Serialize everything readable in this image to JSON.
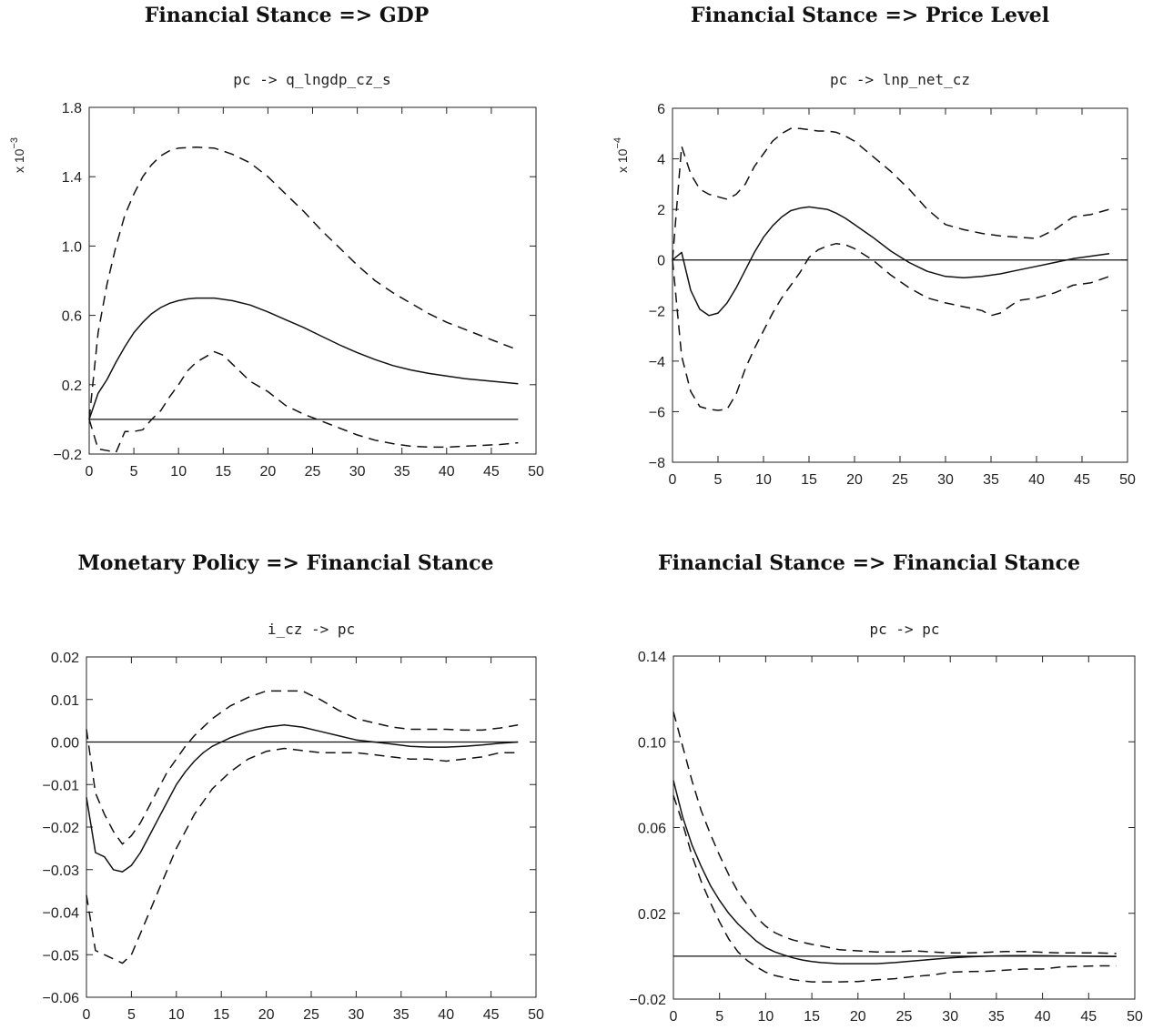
{
  "chart_data": [
    {
      "type": "line",
      "heading": "Financial Stance => GDP",
      "subtitle": "pc -> q_lngdp_cz_s",
      "multiplier_label": "x 10",
      "multiplier_exp": "−3",
      "xlim": [
        0,
        50
      ],
      "ylim": [
        -0.2,
        1.8
      ],
      "x_ticks": [
        0,
        5,
        10,
        15,
        20,
        25,
        30,
        35,
        40,
        45,
        50
      ],
      "x_tick_labels": [
        "0",
        "5",
        "10",
        "15",
        "20",
        "25",
        "30",
        "35",
        "40",
        "45",
        "50"
      ],
      "y_ticks": [
        -0.2,
        0.2,
        0.6,
        1.0,
        1.4,
        1.8
      ],
      "y_tick_labels": [
        "−0.2",
        "0.2",
        "0.6",
        "1.0",
        "1.4",
        "1.8"
      ],
      "zero_line": {
        "y": 0,
        "x": [
          0,
          48
        ]
      },
      "series": [
        {
          "style": "solid",
          "x": [
            0,
            1,
            2,
            3,
            4,
            5,
            6,
            7,
            8,
            9,
            10,
            11,
            12,
            13,
            14,
            16,
            18,
            20,
            22,
            24,
            26,
            28,
            30,
            32,
            34,
            36,
            38,
            40,
            42,
            44,
            46,
            48
          ],
          "y": [
            0,
            0.15,
            0.23,
            0.33,
            0.42,
            0.5,
            0.56,
            0.61,
            0.645,
            0.67,
            0.685,
            0.695,
            0.7,
            0.7,
            0.7,
            0.685,
            0.66,
            0.62,
            0.575,
            0.53,
            0.48,
            0.43,
            0.385,
            0.345,
            0.31,
            0.285,
            0.265,
            0.25,
            0.235,
            0.225,
            0.215,
            0.205
          ]
        },
        {
          "style": "dashed",
          "x": [
            0,
            1,
            2,
            3,
            4,
            5,
            6,
            7,
            8,
            9,
            10,
            12,
            14,
            16,
            18,
            20,
            22,
            24,
            26,
            28,
            30,
            32,
            34,
            36,
            38,
            40,
            42,
            44,
            46,
            48
          ],
          "y": [
            0,
            0.5,
            0.78,
            1.0,
            1.18,
            1.3,
            1.4,
            1.47,
            1.52,
            1.55,
            1.565,
            1.57,
            1.565,
            1.53,
            1.48,
            1.4,
            1.3,
            1.2,
            1.09,
            0.99,
            0.89,
            0.8,
            0.73,
            0.67,
            0.61,
            0.56,
            0.52,
            0.48,
            0.44,
            0.4
          ]
        },
        {
          "style": "dashed",
          "x": [
            0,
            1,
            2,
            3,
            4,
            5,
            6,
            7,
            8,
            9,
            10,
            11,
            12,
            13,
            14,
            15,
            16,
            18,
            20,
            22,
            24,
            26,
            28,
            30,
            32,
            34,
            36,
            38,
            40,
            42,
            44,
            46,
            48
          ],
          "y": [
            0,
            -0.17,
            -0.18,
            -0.19,
            -0.07,
            -0.07,
            -0.06,
            0,
            0.05,
            0.13,
            0.2,
            0.28,
            0.33,
            0.36,
            0.39,
            0.37,
            0.32,
            0.22,
            0.16,
            0.08,
            0.03,
            -0.01,
            -0.05,
            -0.09,
            -0.12,
            -0.14,
            -0.155,
            -0.16,
            -0.16,
            -0.155,
            -0.15,
            -0.145,
            -0.135
          ]
        }
      ]
    },
    {
      "type": "line",
      "heading": "Financial Stance => Price Level",
      "subtitle": "pc -> lnp_net_cz",
      "multiplier_label": "x 10",
      "multiplier_exp": "−4",
      "xlim": [
        0,
        50
      ],
      "ylim": [
        -8,
        6
      ],
      "x_ticks": [
        0,
        5,
        10,
        15,
        20,
        25,
        30,
        35,
        40,
        45,
        50
      ],
      "x_tick_labels": [
        "0",
        "5",
        "10",
        "15",
        "20",
        "25",
        "30",
        "35",
        "40",
        "45",
        "50"
      ],
      "y_ticks": [
        -8,
        -6,
        -4,
        -2,
        0,
        2,
        4,
        6
      ],
      "y_tick_labels": [
        "−8",
        "−6",
        "−4",
        "−2",
        "0",
        "2",
        "4",
        "6"
      ],
      "zero_line": {
        "y": 0,
        "x": [
          0,
          50
        ]
      },
      "series": [
        {
          "style": "solid",
          "x": [
            0,
            1,
            2,
            3,
            4,
            5,
            6,
            7,
            8,
            9,
            10,
            11,
            12,
            13,
            14,
            15,
            16,
            17,
            18,
            19,
            20,
            22,
            24,
            26,
            28,
            30,
            32,
            34,
            36,
            38,
            40,
            42,
            44,
            46,
            48
          ],
          "y": [
            0,
            0.3,
            -1.2,
            -1.95,
            -2.2,
            -2.1,
            -1.7,
            -1.1,
            -0.4,
            0.3,
            0.9,
            1.35,
            1.7,
            1.95,
            2.05,
            2.1,
            2.05,
            2.0,
            1.85,
            1.65,
            1.4,
            0.9,
            0.35,
            -0.1,
            -0.45,
            -0.65,
            -0.7,
            -0.65,
            -0.55,
            -0.4,
            -0.25,
            -0.1,
            0.05,
            0.15,
            0.25
          ]
        },
        {
          "style": "dashed",
          "x": [
            0,
            1,
            2,
            3,
            4,
            5,
            6,
            7,
            8,
            9,
            10,
            11,
            12,
            13,
            14,
            15,
            16,
            17,
            18,
            19,
            20,
            22,
            24,
            26,
            28,
            30,
            32,
            34,
            36,
            38,
            40,
            42,
            44,
            46,
            48
          ],
          "y": [
            0,
            4.5,
            3.4,
            2.8,
            2.6,
            2.5,
            2.4,
            2.6,
            3.0,
            3.7,
            4.2,
            4.7,
            5.0,
            5.2,
            5.2,
            5.15,
            5.1,
            5.1,
            5.05,
            4.9,
            4.7,
            4.1,
            3.5,
            2.8,
            2.0,
            1.4,
            1.2,
            1.05,
            0.95,
            0.9,
            0.85,
            1.2,
            1.7,
            1.8,
            2.0
          ]
        },
        {
          "style": "dashed",
          "x": [
            0,
            1,
            2,
            3,
            4,
            5,
            6,
            7,
            8,
            9,
            10,
            11,
            12,
            13,
            14,
            15,
            16,
            17,
            18,
            19,
            20,
            22,
            24,
            26,
            28,
            30,
            32,
            34,
            35,
            36,
            38,
            40,
            42,
            44,
            46,
            48
          ],
          "y": [
            0,
            -3.8,
            -5.2,
            -5.8,
            -5.9,
            -5.95,
            -5.9,
            -5.3,
            -4.3,
            -3.5,
            -2.8,
            -2.1,
            -1.5,
            -1.0,
            -0.5,
            0.1,
            0.4,
            0.55,
            0.65,
            0.6,
            0.45,
            0,
            -0.6,
            -1.1,
            -1.5,
            -1.7,
            -1.85,
            -2.0,
            -2.2,
            -2.1,
            -1.6,
            -1.5,
            -1.3,
            -1.0,
            -0.9,
            -0.65
          ]
        }
      ]
    },
    {
      "type": "line",
      "heading": "Monetary Policy => Financial Stance",
      "subtitle": "i_cz -> pc",
      "xlim": [
        0,
        50
      ],
      "ylim": [
        -0.06,
        0.02
      ],
      "x_ticks": [
        0,
        5,
        10,
        15,
        20,
        25,
        30,
        35,
        40,
        45,
        50
      ],
      "x_tick_labels": [
        "0",
        "5",
        "10",
        "15",
        "20",
        "25",
        "30",
        "35",
        "40",
        "45",
        "50"
      ],
      "y_ticks": [
        -0.06,
        -0.05,
        -0.04,
        -0.03,
        -0.02,
        -0.01,
        0.0,
        0.01,
        0.02
      ],
      "y_tick_labels": [
        "−0.06",
        "−0.05",
        "−0.04",
        "−0.03",
        "−0.02",
        "−0.01",
        "0.00",
        "0.01",
        "0.02"
      ],
      "zero_line": {
        "y": 0,
        "x": [
          0,
          48
        ]
      },
      "series": [
        {
          "style": "solid",
          "x": [
            0,
            1,
            2,
            3,
            4,
            5,
            6,
            7,
            8,
            9,
            10,
            11,
            12,
            13,
            14,
            15,
            16,
            18,
            20,
            22,
            24,
            26,
            28,
            30,
            32,
            34,
            36,
            38,
            40,
            42,
            44,
            46,
            48
          ],
          "y": [
            -0.013,
            -0.026,
            -0.027,
            -0.03,
            -0.0305,
            -0.029,
            -0.026,
            -0.022,
            -0.018,
            -0.014,
            -0.01,
            -0.007,
            -0.0045,
            -0.0025,
            -0.001,
            0,
            0.001,
            0.0025,
            0.0035,
            0.004,
            0.0035,
            0.0025,
            0.0015,
            0.0005,
            0,
            -0.0005,
            -0.001,
            -0.0012,
            -0.0012,
            -0.001,
            -0.0007,
            -0.0003,
            0
          ]
        },
        {
          "style": "dashed",
          "x": [
            0,
            1,
            2,
            3,
            4,
            5,
            6,
            7,
            8,
            9,
            10,
            11,
            12,
            13,
            14,
            15,
            16,
            18,
            20,
            22,
            24,
            26,
            28,
            30,
            32,
            34,
            36,
            38,
            40,
            42,
            44,
            46,
            48
          ],
          "y": [
            0.003,
            -0.012,
            -0.017,
            -0.021,
            -0.024,
            -0.022,
            -0.019,
            -0.015,
            -0.011,
            -0.007,
            -0.004,
            -0.001,
            0.0015,
            0.0035,
            0.0055,
            0.007,
            0.0085,
            0.0105,
            0.012,
            0.012,
            0.012,
            0.01,
            0.0075,
            0.0055,
            0.0045,
            0.0035,
            0.003,
            0.003,
            0.003,
            0.0028,
            0.0028,
            0.0033,
            0.004
          ]
        },
        {
          "style": "dashed",
          "x": [
            0,
            1,
            2,
            3,
            4,
            5,
            6,
            7,
            8,
            9,
            10,
            11,
            12,
            13,
            14,
            15,
            16,
            18,
            20,
            22,
            24,
            26,
            28,
            30,
            32,
            34,
            36,
            38,
            40,
            42,
            44,
            46,
            48
          ],
          "y": [
            -0.036,
            -0.049,
            -0.05,
            -0.051,
            -0.052,
            -0.05,
            -0.045,
            -0.04,
            -0.035,
            -0.03,
            -0.025,
            -0.021,
            -0.017,
            -0.014,
            -0.011,
            -0.009,
            -0.007,
            -0.004,
            -0.0022,
            -0.0015,
            -0.002,
            -0.0025,
            -0.0025,
            -0.0025,
            -0.003,
            -0.0035,
            -0.004,
            -0.004,
            -0.0045,
            -0.004,
            -0.0035,
            -0.0025,
            -0.0025
          ]
        }
      ]
    },
    {
      "type": "line",
      "heading": "Financial Stance => Financial Stance",
      "subtitle": "pc -> pc",
      "xlim": [
        0,
        50
      ],
      "ylim": [
        -0.02,
        0.14
      ],
      "x_ticks": [
        0,
        5,
        10,
        15,
        20,
        25,
        30,
        35,
        40,
        45,
        50
      ],
      "x_tick_labels": [
        "0",
        "5",
        "10",
        "15",
        "20",
        "25",
        "30",
        "35",
        "40",
        "45",
        "50"
      ],
      "y_ticks": [
        -0.02,
        0.02,
        0.06,
        0.1,
        0.14
      ],
      "y_tick_labels": [
        "−0.02",
        "0.02",
        "0.06",
        "0.10",
        "0.14"
      ],
      "zero_line": {
        "y": 0,
        "x": [
          0,
          48
        ]
      },
      "series": [
        {
          "style": "solid",
          "x": [
            0,
            1,
            2,
            3,
            4,
            5,
            6,
            7,
            8,
            9,
            10,
            11,
            12,
            13,
            14,
            15,
            16,
            18,
            20,
            22,
            24,
            26,
            28,
            30,
            32,
            34,
            36,
            38,
            40,
            42,
            44,
            46,
            48
          ],
          "y": [
            0.082,
            0.065,
            0.052,
            0.042,
            0.033,
            0.026,
            0.02,
            0.015,
            0.011,
            0.007,
            0.004,
            0.002,
            0.0005,
            -0.0008,
            -0.0018,
            -0.0025,
            -0.003,
            -0.0035,
            -0.0035,
            -0.0035,
            -0.003,
            -0.0022,
            -0.0015,
            -0.0008,
            -0.0003,
            0,
            0.0002,
            0.0003,
            0.0002,
            0.0001,
            0,
            -0.0001,
            -0.0002
          ]
        },
        {
          "style": "dashed",
          "x": [
            0,
            1,
            2,
            3,
            4,
            5,
            6,
            7,
            8,
            9,
            10,
            11,
            12,
            13,
            14,
            15,
            16,
            18,
            20,
            22,
            24,
            26,
            28,
            30,
            32,
            34,
            36,
            38,
            40,
            42,
            44,
            46,
            48
          ],
          "y": [
            0.114,
            0.098,
            0.082,
            0.068,
            0.057,
            0.047,
            0.038,
            0.03,
            0.024,
            0.018,
            0.014,
            0.011,
            0.009,
            0.0075,
            0.0065,
            0.0055,
            0.0048,
            0.003,
            0.0025,
            0.002,
            0.002,
            0.0025,
            0.002,
            0.0015,
            0.0015,
            0.0018,
            0.0022,
            0.0022,
            0.0018,
            0.0015,
            0.0015,
            0.0015,
            0.0012
          ]
        },
        {
          "style": "dashed",
          "x": [
            0,
            1,
            2,
            3,
            4,
            5,
            6,
            7,
            8,
            9,
            10,
            11,
            12,
            13,
            14,
            15,
            16,
            18,
            20,
            22,
            24,
            26,
            28,
            30,
            32,
            34,
            36,
            38,
            40,
            42,
            44,
            46,
            48
          ],
          "y": [
            0.075,
            0.062,
            0.047,
            0.035,
            0.025,
            0.016,
            0.008,
            0.002,
            -0.002,
            -0.005,
            -0.0075,
            -0.009,
            -0.01,
            -0.011,
            -0.0115,
            -0.012,
            -0.012,
            -0.012,
            -0.0118,
            -0.011,
            -0.0105,
            -0.0095,
            -0.0088,
            -0.0075,
            -0.0072,
            -0.007,
            -0.0065,
            -0.006,
            -0.006,
            -0.005,
            -0.0048,
            -0.0045,
            -0.0045
          ]
        }
      ]
    }
  ]
}
